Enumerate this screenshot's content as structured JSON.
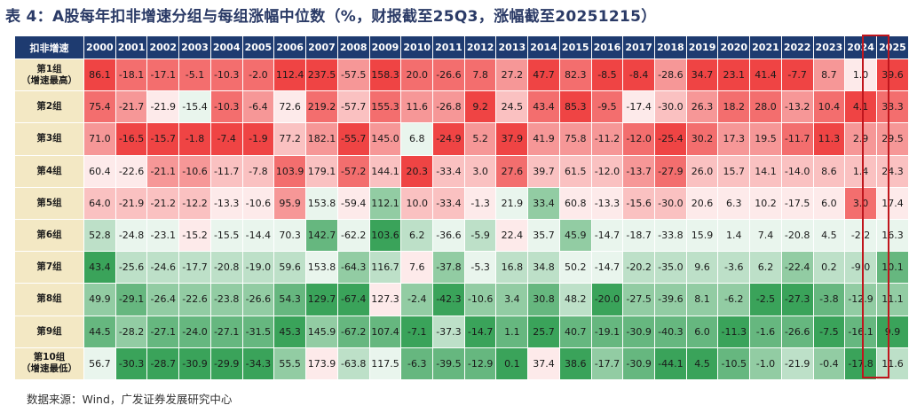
{
  "title": "表 4：A股每年扣非增速分组与每组涨幅中位数（%，财报截至25Q3，涨幅截至20251215）",
  "source": "数据来源：Wind，广发证券发展研究中心",
  "colors": {
    "header_bg": "#1e3b70",
    "rowhead_bg": "#f3e8c4",
    "high": "#ef4444",
    "low": "#3aa35a",
    "highlight_border": "#c0161d"
  },
  "chart_data": {
    "type": "heatmap",
    "title": "表 4：A股每年扣非增速分组与每组涨幅中位数（%，财报截至25Q3，涨幅截至20251215）",
    "corner_label": "扣非增速",
    "years": [
      "2000",
      "2001",
      "2002",
      "2003",
      "2004",
      "2005",
      "2006",
      "2007",
      "2008",
      "2009",
      "2010",
      "2011",
      "2012",
      "2013",
      "2014",
      "2015",
      "2016",
      "2017",
      "2018",
      "2019",
      "2020",
      "2021",
      "2022",
      "2023",
      "2024",
      "2025"
    ],
    "highlighted_column": "2025",
    "rows": [
      {
        "label": [
          "第1组",
          "（增速最高）"
        ],
        "values": [
          86.1,
          -18.1,
          -17.1,
          -5.1,
          -10.3,
          -2.0,
          112.4,
          237.5,
          -57.5,
          158.3,
          20.0,
          -26.6,
          7.8,
          27.2,
          47.7,
          82.3,
          -8.5,
          -8.4,
          -28.6,
          34.7,
          23.1,
          41.4,
          -7.7,
          8.7,
          1.0,
          39.6
        ]
      },
      {
        "label": [
          "第2组"
        ],
        "values": [
          75.4,
          -21.7,
          -21.9,
          -15.4,
          -10.3,
          -6.4,
          72.6,
          219.2,
          -57.7,
          155.3,
          11.6,
          -26.8,
          9.2,
          24.5,
          43.4,
          85.3,
          -9.5,
          -17.4,
          -30.0,
          26.3,
          18.2,
          28.0,
          -13.2,
          10.4,
          4.1,
          33.3
        ]
      },
      {
        "label": [
          "第3组"
        ],
        "values": [
          71.0,
          -16.5,
          -15.7,
          -1.8,
          -7.4,
          -1.9,
          77.2,
          182.1,
          -55.7,
          145.0,
          6.8,
          -24.9,
          5.2,
          37.9,
          41.9,
          75.8,
          -11.2,
          -12.0,
          -25.4,
          30.2,
          17.3,
          19.5,
          -11.7,
          11.3,
          2.9,
          29.5
        ]
      },
      {
        "label": [
          "第4组"
        ],
        "values": [
          60.4,
          -22.6,
          -21.1,
          -10.6,
          -11.7,
          -7.8,
          103.9,
          179.1,
          -57.2,
          144.1,
          20.3,
          -33.4,
          3.0,
          27.6,
          39.7,
          61.5,
          -12.0,
          -13.7,
          -27.9,
          26.0,
          15.7,
          14.1,
          -14.0,
          8.6,
          1.4,
          24.3
        ]
      },
      {
        "label": [
          "第5组"
        ],
        "values": [
          64.0,
          -21.9,
          -21.2,
          -12.2,
          -13.3,
          -10.6,
          95.9,
          153.8,
          -59.4,
          112.1,
          10.0,
          -33.4,
          -1.3,
          21.9,
          33.4,
          60.8,
          -13.3,
          -15.6,
          -30.0,
          20.6,
          6.3,
          10.2,
          -17.5,
          6.0,
          3.0,
          17.4
        ]
      },
      {
        "label": [
          "第6组"
        ],
        "values": [
          52.8,
          -24.8,
          -23.1,
          -15.2,
          -15.5,
          -14.4,
          70.3,
          142.7,
          -62.2,
          103.6,
          6.2,
          -36.6,
          -5.9,
          22.4,
          35.7,
          45.9,
          -14.7,
          -18.7,
          -33.8,
          15.9,
          1.4,
          7.4,
          -20.8,
          4.5,
          -2.2,
          16.3
        ]
      },
      {
        "label": [
          "第7组"
        ],
        "values": [
          43.4,
          -25.6,
          -24.6,
          -17.7,
          -20.8,
          -19.0,
          59.6,
          153.8,
          -64.3,
          116.7,
          7.6,
          -37.8,
          -5.3,
          16.8,
          34.8,
          50.2,
          -14.7,
          -20.2,
          -35.0,
          9.6,
          -3.6,
          6.2,
          -22.4,
          0.2,
          -9.0,
          10.1
        ]
      },
      {
        "label": [
          "第8组"
        ],
        "values": [
          49.9,
          -29.1,
          -26.4,
          -22.6,
          -23.8,
          -26.6,
          54.3,
          129.7,
          -67.4,
          127.3,
          -2.4,
          -42.3,
          -10.6,
          3.4,
          30.8,
          48.2,
          -20.0,
          -27.5,
          -39.6,
          8.1,
          -6.2,
          -2.5,
          -27.3,
          -3.8,
          -12.9,
          11.1
        ]
      },
      {
        "label": [
          "第9组"
        ],
        "values": [
          44.5,
          -28.2,
          -27.1,
          -24.0,
          -27.1,
          -31.5,
          45.3,
          145.9,
          -67.2,
          107.4,
          -7.1,
          -37.3,
          -14.7,
          1.1,
          25.7,
          40.7,
          -19.1,
          -30.9,
          -40.3,
          6.0,
          -11.3,
          -1.6,
          -26.6,
          -7.5,
          -16.1,
          9.9
        ]
      },
      {
        "label": [
          "第10组",
          "（增速最低）"
        ],
        "values": [
          56.7,
          -30.3,
          -28.7,
          -30.9,
          -29.9,
          -34.3,
          55.5,
          173.9,
          -63.8,
          117.5,
          -6.3,
          -39.5,
          -12.9,
          0.1,
          37.4,
          38.6,
          -17.7,
          -30.9,
          -44.1,
          4.5,
          -10.5,
          -1.0,
          -21.9,
          -0.4,
          -17.8,
          11.6
        ]
      }
    ]
  }
}
